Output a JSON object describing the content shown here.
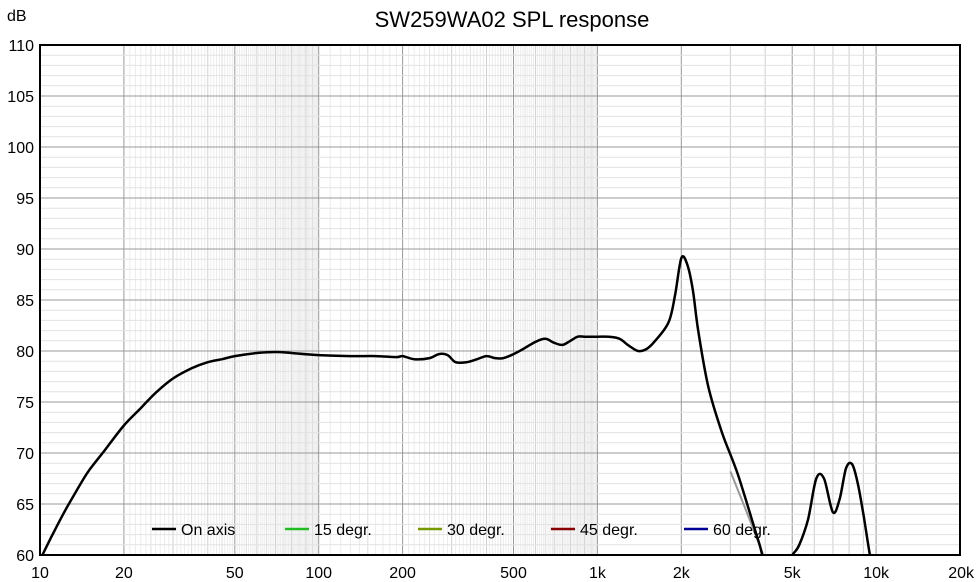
{
  "chart_data": {
    "type": "line",
    "title": "SW259WA02 SPL response",
    "ylabel": "dB",
    "xlabel": "",
    "x_scale": "log",
    "xlim": [
      10,
      20000
    ],
    "ylim": [
      60,
      110
    ],
    "grid": true,
    "legend_position": "bottom-center",
    "x_tick_labels": [
      {
        "value": 10,
        "label": "10"
      },
      {
        "value": 20,
        "label": "20"
      },
      {
        "value": 50,
        "label": "50"
      },
      {
        "value": 100,
        "label": "100"
      },
      {
        "value": 200,
        "label": "200"
      },
      {
        "value": 500,
        "label": "500"
      },
      {
        "value": 1000,
        "label": "1k"
      },
      {
        "value": 2000,
        "label": "2k"
      },
      {
        "value": 5000,
        "label": "5k"
      },
      {
        "value": 10000,
        "label": "10k"
      },
      {
        "value": 20000,
        "label": "20k"
      }
    ],
    "y_ticks": [
      60,
      65,
      70,
      75,
      80,
      85,
      90,
      95,
      100,
      105,
      110
    ],
    "series": [
      {
        "name": "On axis",
        "color": "#000000",
        "x": [
          10.2,
          11,
          12,
          13,
          14,
          15,
          17,
          20,
          23,
          26,
          30,
          35,
          40,
          45,
          50,
          60,
          70,
          80,
          100,
          130,
          160,
          190,
          200,
          220,
          250,
          270,
          290,
          310,
          340,
          370,
          400,
          430,
          460,
          500,
          550,
          600,
          650,
          700,
          750,
          800,
          850,
          900,
          1000,
          1100,
          1200,
          1300,
          1400,
          1500,
          1600,
          1800,
          1900,
          2000,
          2100,
          2200,
          2300,
          2500,
          2800,
          3200,
          3800,
          4200,
          5000,
          5300,
          5700,
          6100,
          6500,
          7000,
          7400,
          7800,
          8200,
          8600,
          9000,
          9500,
          10000
        ],
        "y": [
          60,
          61.8,
          63.8,
          65.5,
          67,
          68.3,
          70.2,
          72.7,
          74.4,
          75.9,
          77.3,
          78.3,
          78.9,
          79.2,
          79.5,
          79.8,
          79.9,
          79.8,
          79.6,
          79.5,
          79.5,
          79.4,
          79.5,
          79.2,
          79.3,
          79.7,
          79.6,
          78.9,
          78.9,
          79.2,
          79.5,
          79.3,
          79.3,
          79.7,
          80.3,
          80.9,
          81.2,
          80.8,
          80.6,
          81,
          81.4,
          81.4,
          81.4,
          81.4,
          81.2,
          80.5,
          80,
          80.2,
          80.9,
          82.8,
          85.5,
          89.1,
          88.5,
          86,
          82,
          76.5,
          72,
          67.8,
          61.2,
          57.5,
          60,
          61,
          63.5,
          67.5,
          67.5,
          64.2,
          65.5,
          68.5,
          68.9,
          67,
          64,
          60,
          57
        ]
      },
      {
        "name": "15 degr.",
        "color": "#22bb22",
        "x": [],
        "y": []
      },
      {
        "name": "30 degr.",
        "color": "#779900",
        "x": [],
        "y": []
      },
      {
        "name": "45 degr.",
        "color": "#880000",
        "x": [],
        "y": []
      },
      {
        "name": "60 degr.",
        "color": "#000099",
        "x": [],
        "y": []
      }
    ],
    "extra_traces": [
      {
        "color": "#999999",
        "x": [
          3000,
          3400,
          3900,
          4300
        ],
        "y": [
          68.2,
          64.5,
          60.3,
          57
        ]
      }
    ]
  }
}
